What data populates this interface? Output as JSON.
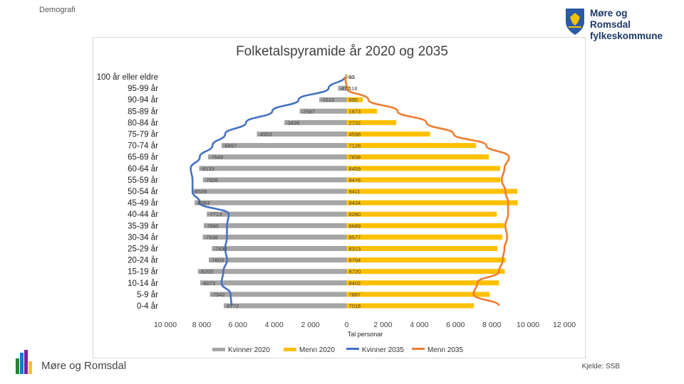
{
  "header": {
    "section": "Demografi"
  },
  "logo": {
    "line1": "Møre og Romsdal",
    "line2": "fylkeskommune"
  },
  "footer": {
    "brand": "Møre og Romsdal",
    "source": "Kjelde: SSB"
  },
  "colors": {
    "women2020": "#a5a5a5",
    "men2020": "#ffc000",
    "women2035": "#4472c4",
    "men2035": "#ed7d31"
  },
  "chart_data": {
    "type": "bar",
    "title": "Folketalspyramide år 2020 og 2035",
    "xlabel": "Tal personar",
    "xlim": [
      -10000,
      12000
    ],
    "xticks": [
      -10000,
      -8000,
      -6000,
      -4000,
      -2000,
      0,
      2000,
      4000,
      6000,
      8000,
      10000,
      12000
    ],
    "xtick_labels": [
      "10 000",
      "8 000",
      "6 000",
      "4 000",
      "2 000",
      "0",
      "2 000",
      "4 000",
      "6 000",
      "8 000",
      "10 000",
      "12 000"
    ],
    "categories": [
      "100 år eller eldre",
      "95-99 år",
      "90-94 år",
      "85-89 år",
      "80-84 år",
      "75-79 år",
      "70-74 år",
      "65-69 år",
      "60-64 år",
      "55-59 år",
      "50-54 år",
      "45-49 år",
      "40-44 år",
      "35-39 år",
      "30-34 år",
      "25-29 år",
      "20-24 år",
      "15-19 år",
      "10-14 år",
      "5-9 år",
      "0-4 år"
    ],
    "series": [
      {
        "name": "Kvinner 2020",
        "kind": "bar",
        "values": [
          -80,
          -472,
          -1510,
          -2587,
          -3436,
          -4953,
          -6897,
          -7649,
          -8133,
          -7926,
          -8539,
          -8383,
          -7713,
          -7880,
          -7938,
          -7430,
          -7603,
          -8200,
          -8073,
          -7542,
          -6772
        ],
        "labels": [
          "-80",
          "-472",
          "-1510",
          "-2587",
          "-3436",
          "-4953",
          "-6897",
          "-7649",
          "-8133",
          "-7926",
          "-8539",
          "-8383",
          "-7713",
          "-7880",
          "-7938",
          "-7430",
          "-7603",
          "-8200",
          "-8073",
          "-7542",
          "-6772"
        ]
      },
      {
        "name": "Menn 2020",
        "kind": "bar",
        "values": [
          13,
          118,
          895,
          1673,
          2732,
          4598,
          7128,
          7838,
          8459,
          8476,
          9411,
          9434,
          8280,
          8689,
          8577,
          8313,
          8764,
          8720,
          8402,
          7887,
          7018
        ],
        "labels": [
          "13",
          "118",
          "895",
          "1673",
          "2732",
          "4598",
          "7128",
          "7838",
          "8459",
          "8476",
          "9411",
          "9434",
          "8280",
          "8689",
          "8577",
          "8313",
          "8764",
          "8720",
          "8402",
          "7887",
          "7018"
        ]
      },
      {
        "name": "Kvinner 2035",
        "kind": "line",
        "values": [
          -100,
          -1000,
          -2650,
          -4100,
          -5550,
          -6700,
          -7400,
          -8100,
          -8600,
          -8500,
          -8500,
          -8100,
          -6500,
          -6600,
          -6600,
          -6700,
          -6600,
          -6800,
          -6900,
          -6400,
          -6350
        ]
      },
      {
        "name": "Menn 2035",
        "kind": "line",
        "values": [
          -80,
          0,
          1200,
          2800,
          4400,
          5900,
          7700,
          8950,
          8700,
          8550,
          8750,
          8900,
          8900,
          8750,
          8850,
          8700,
          8600,
          8400,
          7200,
          7000,
          8400
        ]
      }
    ],
    "legend": "bottom",
    "grid": false
  }
}
